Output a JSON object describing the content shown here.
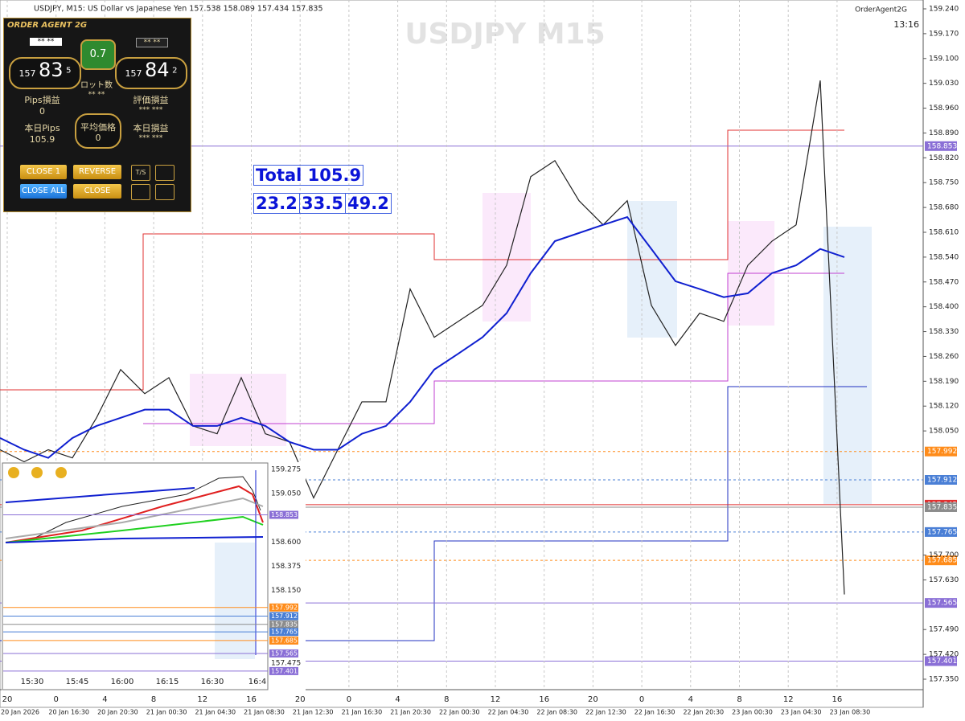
{
  "header": {
    "title": "USDJPY, M15:  US Dollar vs Japanese Yen  157.538 158.089 157.434 157.835",
    "watermark": "USDJPY  M15",
    "agent": "OrderAgent2G",
    "clock": "13:16"
  },
  "price_axis": {
    "ylim": [
      157.35,
      159.24
    ],
    "ticks": [
      {
        "value": 159.24,
        "label": "159.240"
      },
      {
        "value": 159.17,
        "label": "159.170"
      },
      {
        "value": 159.1,
        "label": "159.100"
      },
      {
        "value": 159.03,
        "label": "159.030"
      },
      {
        "value": 158.96,
        "label": "158.960"
      },
      {
        "value": 158.89,
        "label": "158.890"
      },
      {
        "value": 158.82,
        "label": "158.820"
      },
      {
        "value": 158.75,
        "label": "158.750"
      },
      {
        "value": 158.68,
        "label": "158.680"
      },
      {
        "value": 158.61,
        "label": "158.610"
      },
      {
        "value": 158.54,
        "label": "158.540"
      },
      {
        "value": 158.47,
        "label": "158.470"
      },
      {
        "value": 158.4,
        "label": "158.400"
      },
      {
        "value": 158.33,
        "label": "158.330"
      },
      {
        "value": 158.26,
        "label": "158.260"
      },
      {
        "value": 158.19,
        "label": "158.190"
      },
      {
        "value": 158.12,
        "label": "158.120"
      },
      {
        "value": 158.05,
        "label": "158.050"
      },
      {
        "value": 157.7,
        "label": "157.700"
      },
      {
        "value": 157.63,
        "label": "157.630"
      },
      {
        "value": 157.49,
        "label": "157.490"
      },
      {
        "value": 157.42,
        "label": "157.420"
      },
      {
        "value": 157.35,
        "label": "157.350"
      }
    ]
  },
  "levels": [
    {
      "value": 158.853,
      "color": "#8a6fd6",
      "dash": false
    },
    {
      "value": 157.992,
      "color": "#ff8c1a",
      "dash": true
    },
    {
      "value": 157.912,
      "color": "#4a7fd6",
      "dash": true
    },
    {
      "value": 157.842,
      "color": "#e03030",
      "dash": false
    },
    {
      "value": 157.835,
      "color": "#8c8c8c",
      "dash": false
    },
    {
      "value": 157.765,
      "color": "#4a7fd6",
      "dash": true
    },
    {
      "value": 157.685,
      "color": "#ff8c1a",
      "dash": true
    },
    {
      "value": 157.565,
      "color": "#8a6fd6",
      "dash": false
    },
    {
      "value": 157.401,
      "color": "#8a6fd6",
      "dash": false
    }
  ],
  "price": {
    "close": [
      157.997,
      157.963,
      157.997,
      157.974,
      158.087,
      158.223,
      158.155,
      158.2,
      158.064,
      158.042,
      158.2,
      158.042,
      158.019,
      157.861,
      157.997,
      158.132,
      158.132,
      158.45,
      158.314,
      158.359,
      158.404,
      158.517,
      158.767,
      158.812,
      158.699,
      158.631,
      158.699,
      158.404,
      158.291,
      158.382,
      158.359,
      158.517,
      158.585,
      158.631,
      159.038,
      157.589
    ],
    "ma": [
      158.03,
      157.997,
      157.974,
      158.03,
      158.064,
      158.087,
      158.11,
      158.11,
      158.064,
      158.064,
      158.087,
      158.064,
      158.019,
      157.997,
      157.997,
      158.042,
      158.064,
      158.132,
      158.223,
      158.268,
      158.314,
      158.382,
      158.495,
      158.585,
      158.608,
      158.631,
      158.653,
      158.563,
      158.472,
      158.45,
      158.427,
      158.438,
      158.495,
      158.517,
      158.563,
      158.54
    ]
  },
  "time_axis": {
    "hours": [
      "20",
      "0",
      "4",
      "8",
      "12",
      "16",
      "20",
      "0",
      "4",
      "8",
      "12",
      "16",
      "20",
      "0",
      "4",
      "8",
      "12",
      "16"
    ],
    "dates": [
      "20 Jan 2026",
      "20 Jan 16:30",
      "20 Jan 20:30",
      "21 Jan 00:30",
      "21 Jan 04:30",
      "21 Jan 08:30",
      "21 Jan 12:30",
      "21 Jan 16:30",
      "21 Jan 20:30",
      "22 Jan 00:30",
      "22 Jan 04:30",
      "22 Jan 08:30",
      "22 Jan 12:30",
      "22 Jan 16:30",
      "22 Jan 20:30",
      "23 Jan 00:30",
      "23 Jan 04:30",
      "23 Jan 08:30"
    ]
  },
  "totals": {
    "total": "Total 105.9",
    "parts": [
      "23.2",
      "33.5",
      "49.2"
    ]
  },
  "panel": {
    "brand": "ORDER AGENT 2G",
    "bid_mask": "** **",
    "spread": "0.7",
    "ask_mask": "** **",
    "bid": [
      "157",
      "83",
      "5"
    ],
    "ask": [
      "157",
      "84",
      "2"
    ],
    "lot_label": "ロット数",
    "lot_value": "** **",
    "pips_label": "Pips損益",
    "pips_value": "0",
    "eval_label": "評価損益",
    "eval_value": "*** ***",
    "today_pips_label": "本日Pips",
    "today_pips_value": "105.9",
    "avg_label": "平均価格",
    "avg_value": "0",
    "today_pl_label": "本日損益",
    "today_pl_value": "*** ***",
    "buttons": [
      "CLOSE 1",
      "REVERSE",
      "CLOSE ALL",
      "CLOSE"
    ],
    "ts": "T/S"
  },
  "subchart": {
    "ylim": [
      157.475,
      159.275
    ],
    "ticks": [
      {
        "value": 159.275,
        "label": "159.275"
      },
      {
        "value": 159.05,
        "label": "159.050"
      },
      {
        "value": 158.6,
        "label": "158.600"
      },
      {
        "value": 158.375,
        "label": "158.375"
      },
      {
        "value": 158.15,
        "label": "158.150"
      },
      {
        "value": 157.475,
        "label": "157.475"
      }
    ],
    "tags": [
      158.853,
      157.992,
      157.912,
      157.835,
      157.765,
      157.685,
      157.565,
      157.401
    ],
    "times": [
      "15:30",
      "15:45",
      "16:00",
      "16:15",
      "16:30",
      "16:4"
    ]
  }
}
